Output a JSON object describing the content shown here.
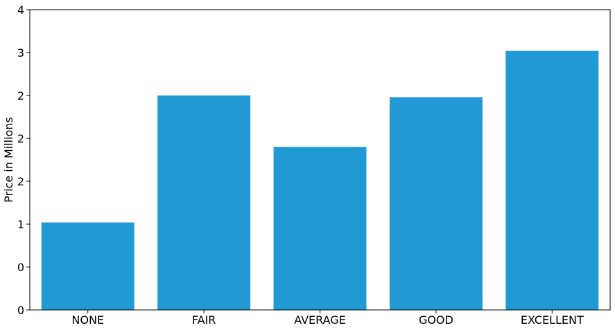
{
  "chart_data": {
    "type": "bar",
    "categories": [
      "NONE",
      "FAIR",
      "AVERAGE",
      "GOOD",
      "EXCELLENT"
    ],
    "values": [
      1.02,
      2.5,
      1.9,
      2.48,
      3.02
    ],
    "ylabel": "Price in Millions",
    "xlabel": "",
    "ylim": [
      0,
      3.5
    ],
    "yticks": [
      0,
      0.5,
      1,
      1.5,
      2,
      2.5,
      3,
      3.5
    ],
    "ytick_labels": [
      "0",
      "0",
      "1",
      "2",
      "2",
      "2",
      "3",
      "4"
    ],
    "bar_color": "#2199d4",
    "grid": false
  }
}
